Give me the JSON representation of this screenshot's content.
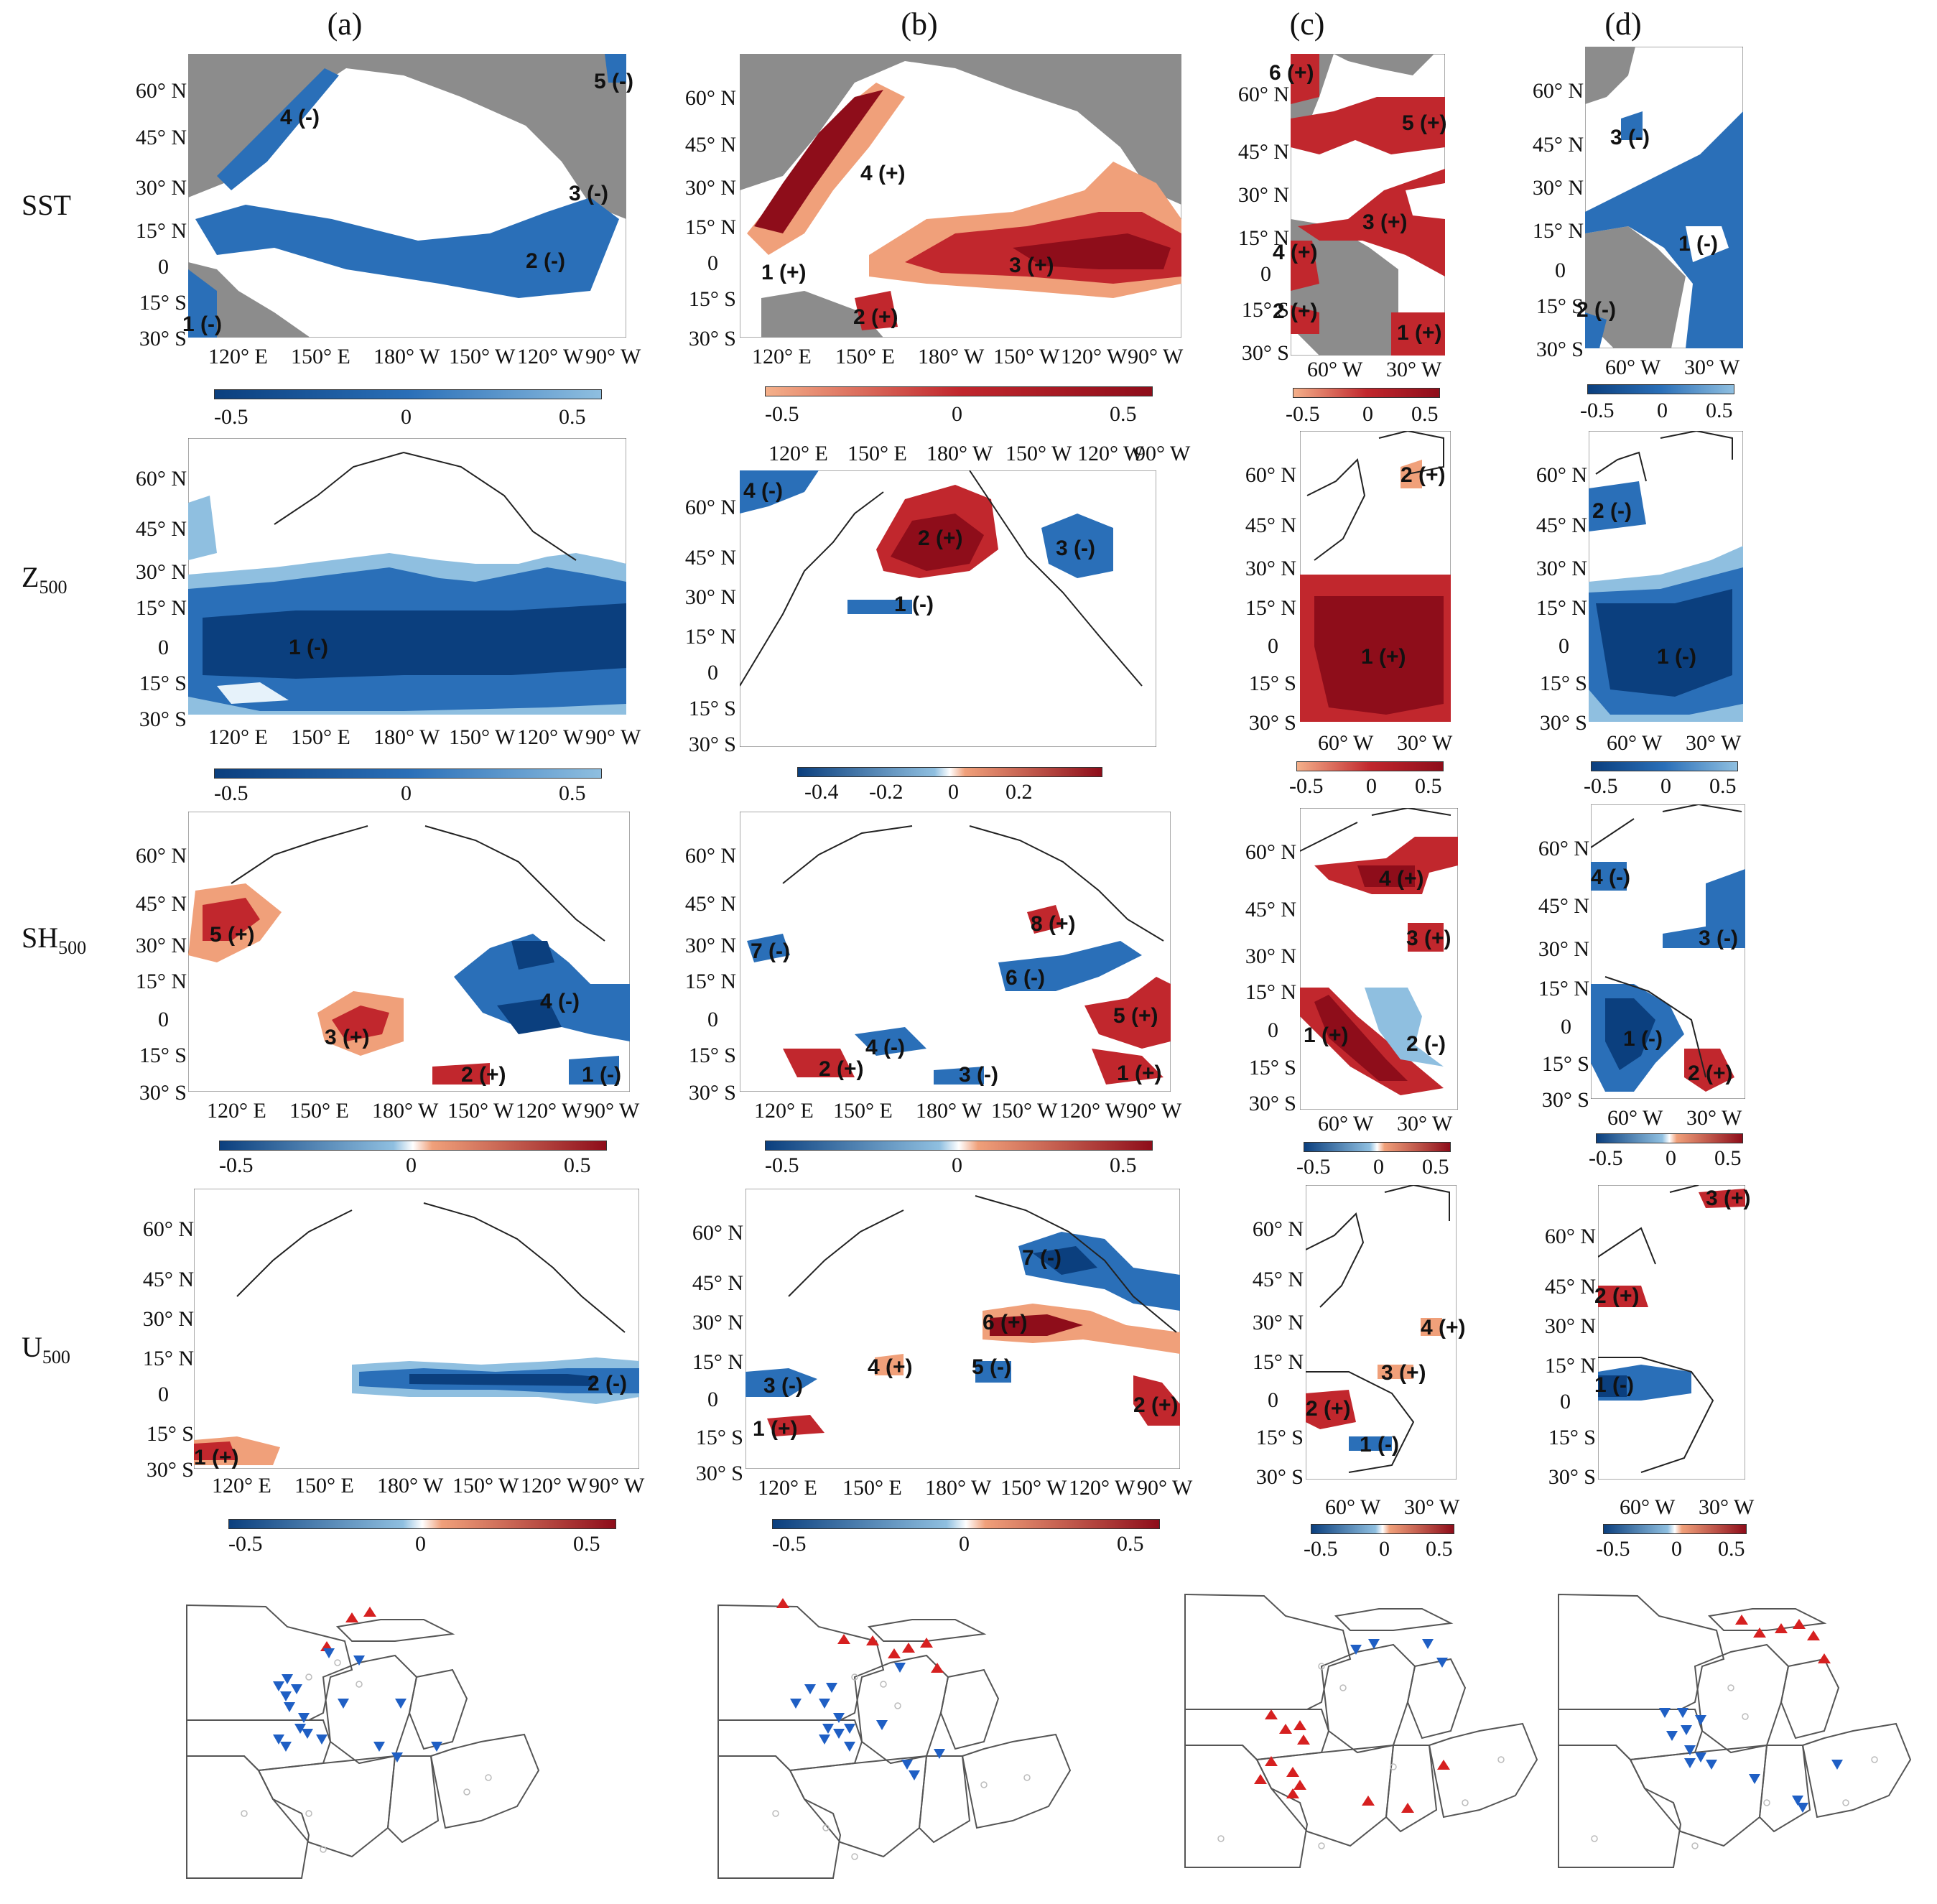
{
  "column_headers": [
    "(a)",
    "(b)",
    "(c)",
    "(d)"
  ],
  "row_labels": {
    "sst": "SST",
    "z500_main": "Z",
    "z500_sub": "500",
    "sh500_main": "SH",
    "sh500_sub": "500",
    "u500_main": "U",
    "u500_sub": "500"
  },
  "lat_ticks": [
    "60° N",
    "45° N",
    "30° N",
    "15° N",
    "0",
    "15° S",
    "30° S"
  ],
  "pacific_lon_ticks": [
    "120° E",
    "150° E",
    "180° W",
    "150° W",
    "120° W",
    "90° W"
  ],
  "atlantic_lon_ticks": [
    "60° W",
    "30° W"
  ],
  "colorbars": {
    "sym": [
      "-0.5",
      "0",
      "0.5"
    ],
    "b_z500": [
      "-0.4",
      "-0.2",
      "0",
      "0.2"
    ]
  },
  "regions": {
    "a_sst": [
      "4 (-)",
      "5 (-)",
      "3 (-)",
      "2 (-)",
      "1 (-)"
    ],
    "b_sst": [
      "4 (+)",
      "1 (+)",
      "3 (+)",
      "2 (+)"
    ],
    "c_sst": [
      "6 (+)",
      "5 (+)",
      "3 (+)",
      "4 (+)",
      "2 (+)",
      "1 (+)"
    ],
    "d_sst": [
      "3 (-)",
      "1 (-)",
      "2 (-)"
    ],
    "a_z500": [
      "1 (-)"
    ],
    "b_z500": [
      "4 (-)",
      "2 (+)",
      "3 (-)",
      "1 (-)"
    ],
    "c_z500": [
      "2 (+)",
      "1 (+)"
    ],
    "d_z500": [
      "2 (-)",
      "1 (-)"
    ],
    "a_sh500": [
      "5 (+)",
      "3 (+)",
      "4 (-)",
      "2 (+)",
      "1 (-)"
    ],
    "b_sh500": [
      "8 (+)",
      "7 (-)",
      "6 (-)",
      "5 (+)",
      "4 (-)",
      "2 (+)",
      "3 (-)",
      "1 (+)"
    ],
    "c_sh500": [
      "4 (+)",
      "3 (+)",
      "1 (+)",
      "2 (-)"
    ],
    "d_sh500": [
      "4 (-)",
      "3 (-)",
      "1 (-)",
      "2 (+)"
    ],
    "a_u500": [
      "2 (-)",
      "1 (+)"
    ],
    "b_u500": [
      "7 (-)",
      "6 (+)",
      "4 (+)",
      "5 (-)",
      "3 (-)",
      "1 (+)",
      "2 (+)"
    ],
    "c_u500": [
      "4 (+)",
      "3 (+)",
      "2 (+)",
      "1 (-)"
    ],
    "d_u500": [
      "3 (+)",
      "2 (+)",
      "1 (-)"
    ]
  },
  "colors": {
    "land": "#8c8c8c",
    "neg_dark": "#0b3f7e",
    "neg_mid": "#2a6fb8",
    "neg_light": "#8fbfe0",
    "pos_dark": "#8e0d1a",
    "pos_mid": "#c1272d",
    "pos_light": "#f0a07a",
    "up_marker": "#d62020",
    "down_marker": "#1f5fc4"
  }
}
